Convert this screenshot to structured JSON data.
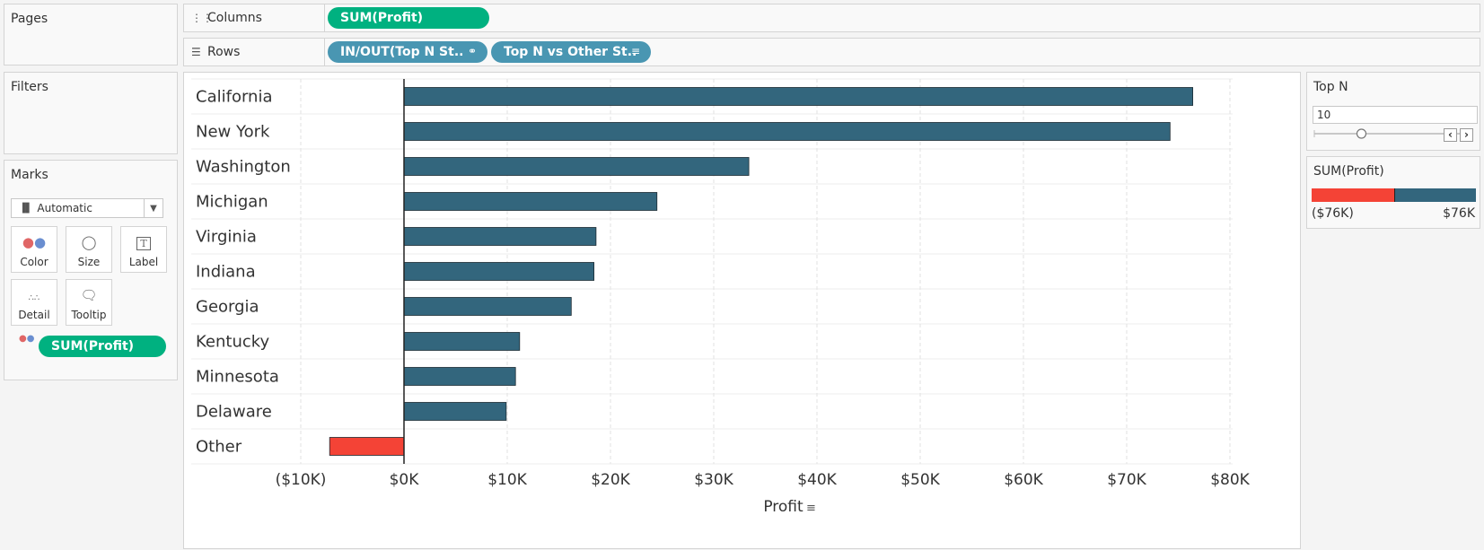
{
  "pages": {
    "title": "Pages"
  },
  "filters": {
    "title": "Filters"
  },
  "marks": {
    "title": "Marks",
    "type_value": "Automatic",
    "buttons": {
      "color": "Color",
      "size": "Size",
      "label": "Label",
      "detail": "Detail",
      "tooltip": "Tooltip"
    },
    "color_pill": "SUM(Profit)"
  },
  "columns": {
    "label": "Columns",
    "pills": [
      "SUM(Profit)"
    ]
  },
  "rows": {
    "label": "Rows",
    "pills": [
      "IN/OUT(Top N St..",
      "Top N vs Other St.."
    ]
  },
  "top_n": {
    "title": "Top N",
    "value": "10",
    "slider_fraction": 0.32
  },
  "color_legend": {
    "title": "SUM(Profit)",
    "min_label": "($76K)",
    "max_label": "$76K",
    "colors": {
      "negative": "#f44336",
      "positive": "#33667d"
    }
  },
  "chart_data": {
    "type": "bar",
    "orientation": "horizontal",
    "categories": [
      "California",
      "New York",
      "Washington",
      "Michigan",
      "Virginia",
      "Indiana",
      "Georgia",
      "Kentucky",
      "Minnesota",
      "Delaware",
      "Other"
    ],
    "values": [
      76400,
      74200,
      33400,
      24500,
      18600,
      18400,
      16200,
      11200,
      10800,
      9900,
      -7200
    ],
    "xlabel": "Profit",
    "xlim": [
      -10000,
      80000
    ],
    "x_ticks": [
      -10000,
      0,
      10000,
      20000,
      30000,
      40000,
      50000,
      60000,
      70000,
      80000
    ],
    "x_tick_labels": [
      "($10K)",
      "$0K",
      "$10K",
      "$20K",
      "$30K",
      "$40K",
      "$50K",
      "$60K",
      "$70K",
      "$80K"
    ],
    "grid": true,
    "colors": {
      "positive": "#33667d",
      "negative": "#f44336"
    }
  }
}
